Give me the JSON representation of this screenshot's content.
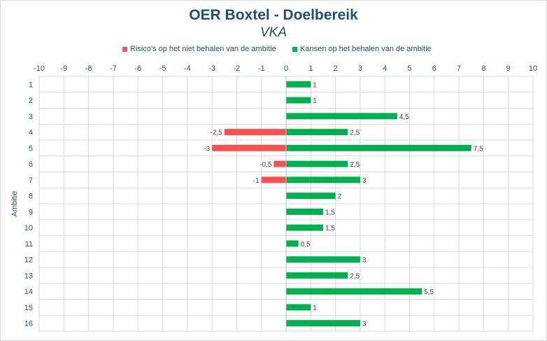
{
  "chart_data": {
    "type": "bar",
    "orientation": "horizontal",
    "title": "OER Boxtel  - Doelbereik",
    "subtitle": "VKA",
    "ylabel": "Ambitie",
    "xlabel": "",
    "xlim": [
      -10,
      10
    ],
    "x_ticks": [
      "-10",
      "-9",
      "-8",
      "-7",
      "-6",
      "-5",
      "-4",
      "-3",
      "-2",
      "-1",
      "0",
      "1",
      "2",
      "3",
      "4",
      "5",
      "6",
      "7",
      "8",
      "9",
      "10"
    ],
    "categories": [
      "1",
      "2",
      "3",
      "4",
      "5",
      "6",
      "7",
      "8",
      "9",
      "10",
      "11",
      "12",
      "13",
      "14",
      "15",
      "16"
    ],
    "legend_position": "top",
    "grid": true,
    "series": [
      {
        "name": "Risico's op het niet behalen van de ambitie",
        "color": "#ff5050",
        "values": [
          null,
          null,
          null,
          -2.5,
          -3,
          -0.5,
          -1,
          null,
          null,
          null,
          null,
          null,
          null,
          null,
          null,
          null
        ],
        "labels": [
          "",
          "",
          "",
          "-2,5",
          "-3",
          "-0,5",
          "-1",
          "",
          "",
          "",
          "",
          "",
          "",
          "",
          "",
          ""
        ]
      },
      {
        "name": "Kansen op het behalen van de ambitie",
        "color": "#00b050",
        "values": [
          1,
          1,
          4.5,
          2.5,
          7.5,
          2.5,
          3,
          2,
          1.5,
          1.5,
          0.5,
          3,
          2.5,
          5.5,
          1,
          3
        ],
        "labels": [
          "1",
          "1",
          "4,5",
          "2,5",
          "7,5",
          "2,5",
          "3",
          "2",
          "1,5",
          "1,5",
          "0,5",
          "3",
          "2,5",
          "5,5",
          "1",
          "3"
        ]
      }
    ]
  }
}
